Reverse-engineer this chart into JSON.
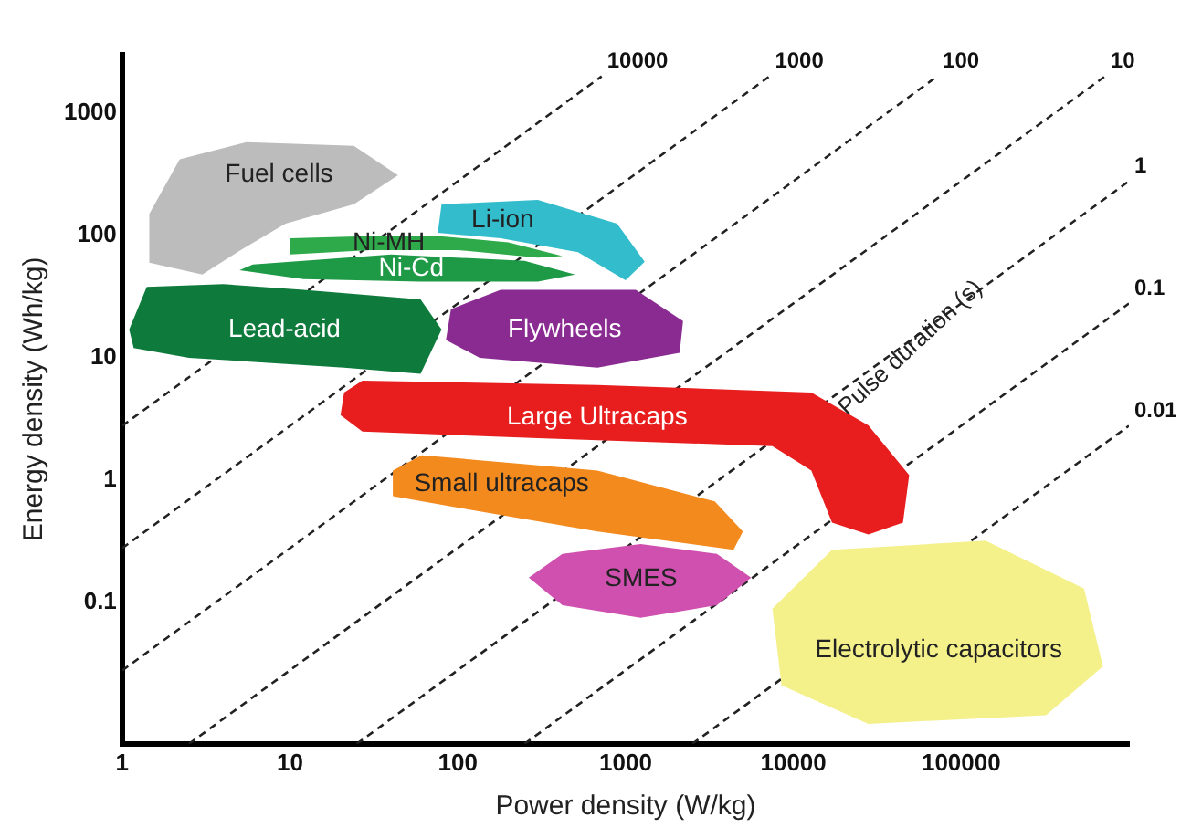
{
  "chart_data": {
    "type": "area",
    "xlabel": "Power density (W/kg)",
    "ylabel": "Energy density (Wh/kg)",
    "log": "xy",
    "grid": false,
    "legend": false,
    "marker": "none",
    "xlim": [
      1,
      1000000
    ],
    "xticks": [
      1,
      10,
      100,
      1000,
      10000,
      100000
    ],
    "ylim": [
      0.007,
      3000
    ],
    "yticks": [
      0.1,
      1,
      10,
      100,
      1000
    ],
    "annotations": [
      {
        "text": "Pulse duration (s)",
        "x": 50000,
        "y": 12
      }
    ],
    "series": [
      {
        "name": "Fuel cells",
        "color": "#bcbcbc",
        "x": [
          1.45,
          2.2,
          5.5,
          24,
          44,
          24,
          9.4,
          5,
          3,
          1.45
        ],
        "values": [
          150,
          420,
          580,
          540,
          310,
          180,
          125,
          75,
          48,
          60
        ]
      },
      {
        "name": "Li-ion",
        "color": "#33bccc",
        "x": [
          80,
          300,
          890,
          1300,
          1000,
          520,
          180,
          76
        ],
        "values": [
          180,
          195,
          125,
          61,
          43,
          73,
          95,
          105
        ]
      },
      {
        "name": "Ni-MH",
        "color": "#2eaa4a",
        "x": [
          10,
          40,
          70,
          200,
          420,
          300,
          100,
          30,
          10
        ],
        "values": [
          95,
          100,
          100,
          88,
          68,
          66,
          76,
          76,
          70
        ]
      },
      {
        "name": "Ni-Cd",
        "color": "#1e9a46",
        "x": [
          6,
          40,
          250,
          500,
          300,
          60,
          12,
          5
        ],
        "values": [
          58,
          70,
          62,
          48,
          42,
          42,
          44,
          52
        ]
      },
      {
        "name": "Lead-acid",
        "color": "#0e7a3c",
        "x": [
          1.1,
          1.4,
          4,
          12,
          60,
          80,
          60,
          21,
          2.5,
          1.17
        ],
        "values": [
          17,
          38,
          40,
          36,
          30,
          17,
          7.4,
          8.3,
          10,
          12
        ]
      },
      {
        "name": "Flywheels",
        "color": "#8a2b92",
        "x": [
          91,
          180,
          1150,
          2200,
          2100,
          680,
          135,
          85
        ],
        "values": [
          25,
          36,
          36,
          20,
          11,
          8.3,
          10,
          14
        ]
      },
      {
        "name": "Large Ultracaps",
        "color": "#e81e1e",
        "x": [
          21,
          27,
          680,
          12800,
          28000,
          49000,
          45000,
          28000,
          17000,
          12800,
          7500,
          300,
          27,
          20
        ],
        "values": [
          5.2,
          6.5,
          6.0,
          5.2,
          2.8,
          1.1,
          0.45,
          0.36,
          0.45,
          1.2,
          1.9,
          2.2,
          2.5,
          3.4
        ]
      },
      {
        "name": "Small ultracaps",
        "color": "#f38a1e",
        "x": [
          41,
          61,
          680,
          3400,
          5000,
          4400,
          680,
          105,
          41
        ],
        "values": [
          1.2,
          1.6,
          1.2,
          0.67,
          0.38,
          0.27,
          0.38,
          0.59,
          0.74
        ]
      },
      {
        "name": "SMES",
        "color": "#d050b0",
        "x": [
          5600,
          3500,
          1230,
          420,
          265,
          420,
          1230,
          3500
        ],
        "values": [
          0.16,
          0.095,
          0.075,
          0.095,
          0.16,
          0.25,
          0.3,
          0.25
        ]
      },
      {
        "name": "Electrolytic capacitors",
        "color": "#f4f08a",
        "x": [
          7500,
          17000,
          140000,
          540000,
          700000,
          320000,
          28000,
          8500
        ],
        "values": [
          0.089,
          0.27,
          0.32,
          0.13,
          0.03,
          0.012,
          0.0102,
          0.021
        ]
      },
      {
        "name": "10000",
        "type": "line",
        "line_style": "dashed",
        "color": "#222222",
        "x": [
          1,
          720
        ],
        "values": [
          2.78,
          2000
        ]
      },
      {
        "name": "1000",
        "type": "line",
        "line_style": "dashed",
        "color": "#222222",
        "x": [
          1,
          7200
        ],
        "values": [
          0.278,
          2000
        ]
      },
      {
        "name": "100",
        "type": "line",
        "line_style": "dashed",
        "color": "#222222",
        "x": [
          1,
          72000
        ],
        "values": [
          0.0278,
          2000
        ]
      },
      {
        "name": "10",
        "type": "line",
        "line_style": "dashed",
        "color": "#222222",
        "x": [
          2.5,
          720000
        ],
        "values": [
          0.007,
          2000
        ]
      },
      {
        "name": "1",
        "type": "line",
        "line_style": "dashed",
        "color": "#222222",
        "x": [
          25,
          1000000
        ],
        "values": [
          0.007,
          278
        ]
      },
      {
        "name": "0.1",
        "type": "line",
        "line_style": "dashed",
        "color": "#222222",
        "x": [
          250,
          1000000
        ],
        "values": [
          0.007,
          27.8
        ]
      },
      {
        "name": "0.01",
        "type": "line",
        "line_style": "dashed",
        "color": "#222222",
        "x": [
          2500,
          1000000
        ],
        "values": [
          0.007,
          2.78
        ]
      }
    ]
  }
}
